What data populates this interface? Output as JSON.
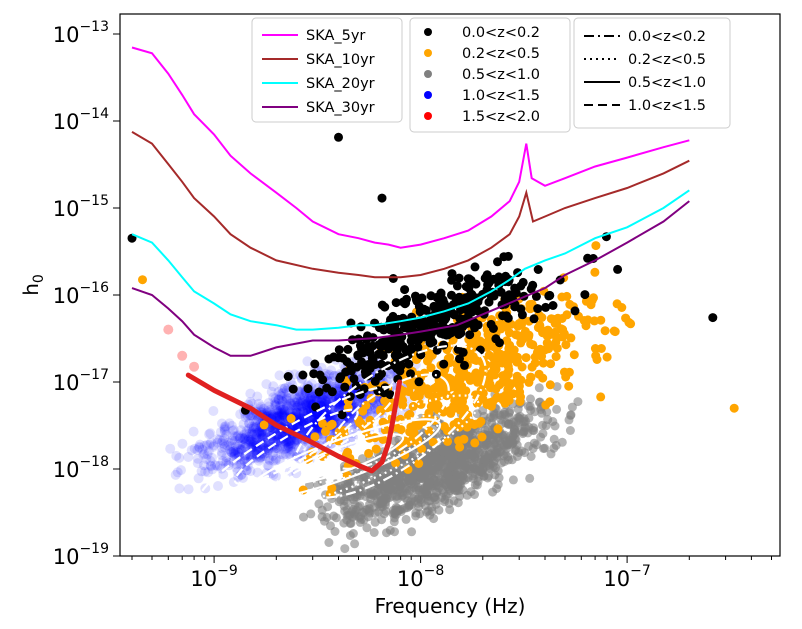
{
  "chart_data": {
    "type": "scatter",
    "xlabel": "Frequency (Hz)",
    "ylabel_base": "h",
    "ylabel_sub": "0",
    "xscale": "log",
    "yscale": "log",
    "xlim": [
      3.5e-10,
      5.5e-07
    ],
    "ylim": [
      1e-19,
      1.7e-13
    ],
    "legend_placement": "top-center",
    "x_ticks": [
      {
        "base": "10",
        "exp": "−9",
        "value": 1e-09
      },
      {
        "base": "10",
        "exp": "−8",
        "value": 1e-08
      },
      {
        "base": "10",
        "exp": "−7",
        "value": 1e-07
      }
    ],
    "y_ticks": [
      {
        "base": "10",
        "exp": "−19",
        "value": 1e-19
      },
      {
        "base": "10",
        "exp": "−18",
        "value": 1e-18
      },
      {
        "base": "10",
        "exp": "−17",
        "value": 1e-17
      },
      {
        "base": "10",
        "exp": "−16",
        "value": 1e-16
      },
      {
        "base": "10",
        "exp": "−15",
        "value": 1e-15
      },
      {
        "base": "10",
        "exp": "−14",
        "value": 1e-14
      },
      {
        "base": "10",
        "exp": "−13",
        "value": 1e-13
      }
    ],
    "sensitivity_curves": [
      {
        "name": "SKA_5yr",
        "color": "#ff00ff",
        "points": [
          [
            4e-10,
            7e-14
          ],
          [
            5e-10,
            6e-14
          ],
          [
            6e-10,
            3.5e-14
          ],
          [
            7e-10,
            2e-14
          ],
          [
            8e-10,
            1.2e-14
          ],
          [
            1e-09,
            7e-15
          ],
          [
            1.2e-09,
            4e-15
          ],
          [
            1.5e-09,
            2.5e-15
          ],
          [
            2e-09,
            1.5e-15
          ],
          [
            2.5e-09,
            1e-15
          ],
          [
            3e-09,
            7e-16
          ],
          [
            4e-09,
            5e-16
          ],
          [
            5e-09,
            4.5e-16
          ],
          [
            6e-09,
            4e-16
          ],
          [
            7e-09,
            3.8e-16
          ],
          [
            8e-09,
            3.5e-16
          ],
          [
            1e-08,
            3.8e-16
          ],
          [
            1.3e-08,
            4.5e-16
          ],
          [
            1.7e-08,
            5.5e-16
          ],
          [
            2.2e-08,
            8e-16
          ],
          [
            2.7e-08,
            1.2e-15
          ],
          [
            3e-08,
            2e-15
          ],
          [
            3.25e-08,
            5.5e-15
          ],
          [
            3.45e-08,
            2.2e-15
          ],
          [
            4e-08,
            1.8e-15
          ],
          [
            5e-08,
            2.2e-15
          ],
          [
            7e-08,
            3e-15
          ],
          [
            1e-07,
            3.8e-15
          ],
          [
            1.5e-07,
            5e-15
          ],
          [
            2e-07,
            6e-15
          ]
        ]
      },
      {
        "name": "SKA_10yr",
        "color": "#a52a2a",
        "points": [
          [
            4e-10,
            7.5e-15
          ],
          [
            5e-10,
            5.5e-15
          ],
          [
            6e-10,
            3.2e-15
          ],
          [
            7e-10,
            2e-15
          ],
          [
            8e-10,
            1.3e-15
          ],
          [
            1e-09,
            8e-16
          ],
          [
            1.2e-09,
            5e-16
          ],
          [
            1.5e-09,
            3.5e-16
          ],
          [
            2e-09,
            2.5e-16
          ],
          [
            3e-09,
            2e-16
          ],
          [
            4e-09,
            1.8e-16
          ],
          [
            5e-09,
            1.7e-16
          ],
          [
            6e-09,
            1.6e-16
          ],
          [
            8e-09,
            1.6e-16
          ],
          [
            1e-08,
            1.7e-16
          ],
          [
            1.3e-08,
            2e-16
          ],
          [
            1.7e-08,
            2.5e-16
          ],
          [
            2.2e-08,
            3.5e-16
          ],
          [
            2.7e-08,
            5e-16
          ],
          [
            3e-08,
            8e-16
          ],
          [
            3.25e-08,
            1.5e-15
          ],
          [
            3.5e-08,
            7e-16
          ],
          [
            4e-08,
            8e-16
          ],
          [
            5e-08,
            1e-15
          ],
          [
            7e-08,
            1.3e-15
          ],
          [
            1e-07,
            1.7e-15
          ],
          [
            1.5e-07,
            2.5e-15
          ],
          [
            2e-07,
            3.5e-15
          ]
        ]
      },
      {
        "name": "SKA_20yr",
        "color": "#00ffff",
        "points": [
          [
            4e-10,
            5e-16
          ],
          [
            5e-10,
            4e-16
          ],
          [
            6e-10,
            2.5e-16
          ],
          [
            7e-10,
            1.6e-16
          ],
          [
            8e-10,
            1.1e-16
          ],
          [
            1e-09,
            8e-17
          ],
          [
            1.2e-09,
            6e-17
          ],
          [
            1.5e-09,
            5e-17
          ],
          [
            2e-09,
            4.5e-17
          ],
          [
            2.5e-09,
            4e-17
          ],
          [
            3e-09,
            4e-17
          ],
          [
            4e-09,
            4.2e-17
          ],
          [
            5e-09,
            4.5e-17
          ],
          [
            6e-09,
            4.5e-17
          ],
          [
            8e-09,
            5e-17
          ],
          [
            1e-08,
            5.5e-17
          ],
          [
            1.3e-08,
            6.5e-17
          ],
          [
            1.7e-08,
            8e-17
          ],
          [
            2.2e-08,
            1.1e-16
          ],
          [
            2.7e-08,
            1.5e-16
          ],
          [
            3.2e-08,
            2e-16
          ],
          [
            4e-08,
            2.5e-16
          ],
          [
            5e-08,
            3e-16
          ],
          [
            7e-08,
            4.5e-16
          ],
          [
            1e-07,
            6e-16
          ],
          [
            1.5e-07,
            1e-15
          ],
          [
            2e-07,
            1.6e-15
          ]
        ]
      },
      {
        "name": "SKA_30yr",
        "color": "#800080",
        "points": [
          [
            4e-10,
            1.2e-16
          ],
          [
            5e-10,
            1e-16
          ],
          [
            6e-10,
            7e-17
          ],
          [
            7e-10,
            5e-17
          ],
          [
            8e-10,
            3.5e-17
          ],
          [
            1e-09,
            2.5e-17
          ],
          [
            1.2e-09,
            2e-17
          ],
          [
            1.5e-09,
            2e-17
          ],
          [
            2e-09,
            2.5e-17
          ],
          [
            3e-09,
            3e-17
          ],
          [
            4e-09,
            3e-17
          ],
          [
            6e-09,
            3.2e-17
          ],
          [
            8e-09,
            3.5e-17
          ],
          [
            1e-08,
            3.8e-17
          ],
          [
            1.5e-08,
            4.5e-17
          ],
          [
            2e-08,
            6e-17
          ],
          [
            2.5e-08,
            7.5e-17
          ],
          [
            3e-08,
            9e-17
          ],
          [
            4e-08,
            1.2e-16
          ],
          [
            5e-08,
            1.7e-16
          ],
          [
            7e-08,
            2.5e-16
          ],
          [
            1e-07,
            4e-16
          ],
          [
            1.5e-07,
            7e-16
          ],
          [
            2e-07,
            1.2e-15
          ]
        ]
      }
    ],
    "redshift_bins": [
      {
        "name": "0.0<z<0.2",
        "color": "#000000",
        "opacity": 1.0,
        "note": "sparse upper population, f ~ 1e-9 to 3e-7 Hz, h0 ~ 2e-18 to 5e-16",
        "outliers": [
          [
            4e-10,
            4.5e-16
          ],
          [
            4e-09,
            6.5e-15
          ],
          [
            6.5e-09,
            1.3e-15
          ],
          [
            2.6e-07,
            5.5e-17
          ]
        ]
      },
      {
        "name": "0.2<z<0.5",
        "color": "#ffa500",
        "opacity": 1.0,
        "note": "f ~ 4e-10 to 2e-7 Hz, h0 ~ 2e-19 to 3e-16",
        "outliers": [
          [
            4.5e-10,
            1.5e-16
          ],
          [
            3.3e-07,
            5e-18
          ]
        ]
      },
      {
        "name": "0.5<z<1.0",
        "color": "#808080",
        "opacity": 0.6,
        "note": "dense band, f ~ 5e-10 to 1.5e-7 Hz, h0 ~ 3e-19 to 3e-17",
        "outliers": []
      },
      {
        "name": "1.0<z<1.5",
        "color": "#0000ff",
        "opacity": 0.12,
        "note": "dense lower-left band, f ~ 6e-10 to 2e-8 Hz, h0 ~ 5e-19 to 5e-17",
        "outliers": []
      },
      {
        "name": "1.5<z<2.0",
        "color": "#ff0000",
        "opacity": 0.25,
        "note": "narrow track, f ~ 7e-10 to 8e-9 Hz",
        "outliers": [
          [
            6e-10,
            4e-17
          ],
          [
            7e-10,
            2e-17
          ],
          [
            8e-10,
            1.5e-17
          ]
        ]
      }
    ],
    "red_track": {
      "color": "#e02020",
      "points": [
        [
          7.5e-10,
          1.2e-17
        ],
        [
          1e-09,
          8e-18
        ],
        [
          1.5e-09,
          5e-18
        ],
        [
          2e-09,
          3.2e-18
        ],
        [
          3e-09,
          2e-18
        ],
        [
          4e-09,
          1.4e-18
        ],
        [
          5e-09,
          1.1e-18
        ],
        [
          5.8e-09,
          9.5e-19
        ],
        [
          6.5e-09,
          1.2e-18
        ],
        [
          7e-09,
          2e-18
        ],
        [
          7.4e-09,
          4e-18
        ],
        [
          7.7e-09,
          7e-18
        ],
        [
          7.9e-09,
          1e-17
        ]
      ]
    },
    "contours": [
      {
        "style": "dashdot",
        "label": "0.0<z<0.2",
        "center": [
          7e-09,
          3.5e-18
        ],
        "width_dex": 0.55,
        "height_dex": 1.1,
        "angle": -35
      },
      {
        "style": "dotted",
        "label": "0.2<z<0.5",
        "center": [
          6e-09,
          1.7e-18
        ],
        "width_dex": 0.55,
        "height_dex": 0.6,
        "angle": -25
      },
      {
        "style": "solid",
        "label": "0.5<z<1.0",
        "center": [
          4.2e-09,
          1.3e-18
        ],
        "width_dex": 0.5,
        "height_dex": 0.45,
        "angle": -20
      },
      {
        "style": "dashed",
        "label": "1.0<z<1.5",
        "center": [
          2.5e-09,
          1.8e-18
        ],
        "width_dex": 0.55,
        "height_dex": 0.5,
        "angle": -30
      }
    ],
    "legend_curves": [
      {
        "label": "SKA_5yr",
        "color": "#ff00ff"
      },
      {
        "label": "SKA_10yr",
        "color": "#a52a2a"
      },
      {
        "label": "SKA_20yr",
        "color": "#00ffff"
      },
      {
        "label": "SKA_30yr",
        "color": "#800080"
      }
    ],
    "legend_points": [
      {
        "label": "0.0<z<0.2",
        "color": "#000000"
      },
      {
        "label": "0.2<z<0.5",
        "color": "#ffa500"
      },
      {
        "label": "0.5<z<1.0",
        "color": "#808080"
      },
      {
        "label": "1.0<z<1.5",
        "color": "#0000ff"
      },
      {
        "label": "1.5<z<2.0",
        "color": "#ff0000"
      }
    ],
    "legend_lines": [
      {
        "label": "0.0<z<0.2",
        "style": "dashdot"
      },
      {
        "label": "0.2<z<0.5",
        "style": "dotted"
      },
      {
        "label": "0.5<z<1.0",
        "style": "solid"
      },
      {
        "label": "1.0<z<1.5",
        "style": "dashed"
      }
    ]
  }
}
